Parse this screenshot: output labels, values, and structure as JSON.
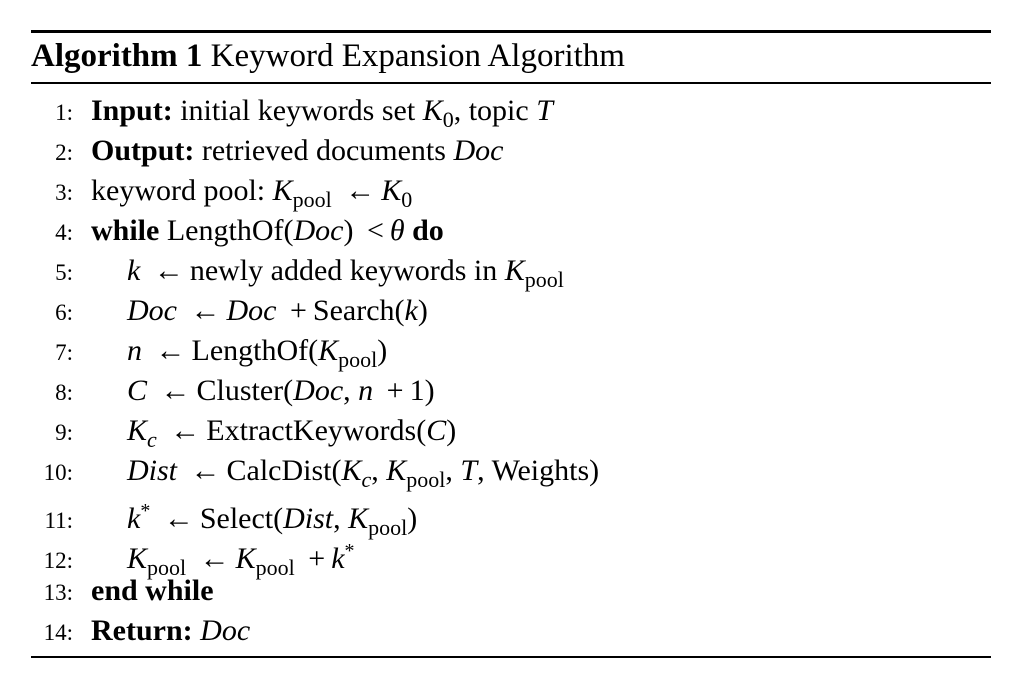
{
  "caption": {
    "label": "Algorithm 1",
    "title": "Keyword Expansion Algorithm"
  },
  "lines": [
    {
      "num": "1:"
    },
    {
      "num": "2:"
    },
    {
      "num": "3:"
    },
    {
      "num": "4:"
    },
    {
      "num": "5:"
    },
    {
      "num": "6:"
    },
    {
      "num": "7:"
    },
    {
      "num": "8:"
    },
    {
      "num": "9:"
    },
    {
      "num": "10:"
    },
    {
      "num": "11:"
    },
    {
      "num": "12:"
    },
    {
      "num": "13:"
    },
    {
      "num": "14:"
    }
  ],
  "t": {
    "input_kw": "Input:",
    "input_txt": "initial keywords set",
    "K": "K",
    "zero": "0",
    "comma_topic": ", topic",
    "T": "T",
    "output_kw": "Output:",
    "output_txt": "retrieved documents",
    "Doc": "Doc",
    "pool_label": "keyword pool:",
    "pool": "pool",
    "arrow": "←",
    "while_kw": "while",
    "lengthof": "LengthOf(",
    "rparen": ")",
    "lt": "<",
    "theta": "θ",
    "do_kw": "do",
    "k": "k",
    "newly": "newly added keywords in",
    "plus": "+",
    "search": "Search(",
    "n": "n",
    "lengthof2": "LengthOf(",
    "C": "C",
    "cluster": "Cluster(",
    "comma": ",",
    "one": "1)",
    "c": "c",
    "extract": "ExtractKeywords(",
    "Dist": "Dist",
    "calc": "CalcDist(",
    "weights": "Weights)",
    "star": "*",
    "select": "Select(",
    "end_while": "end while",
    "return_kw": "Return:"
  }
}
